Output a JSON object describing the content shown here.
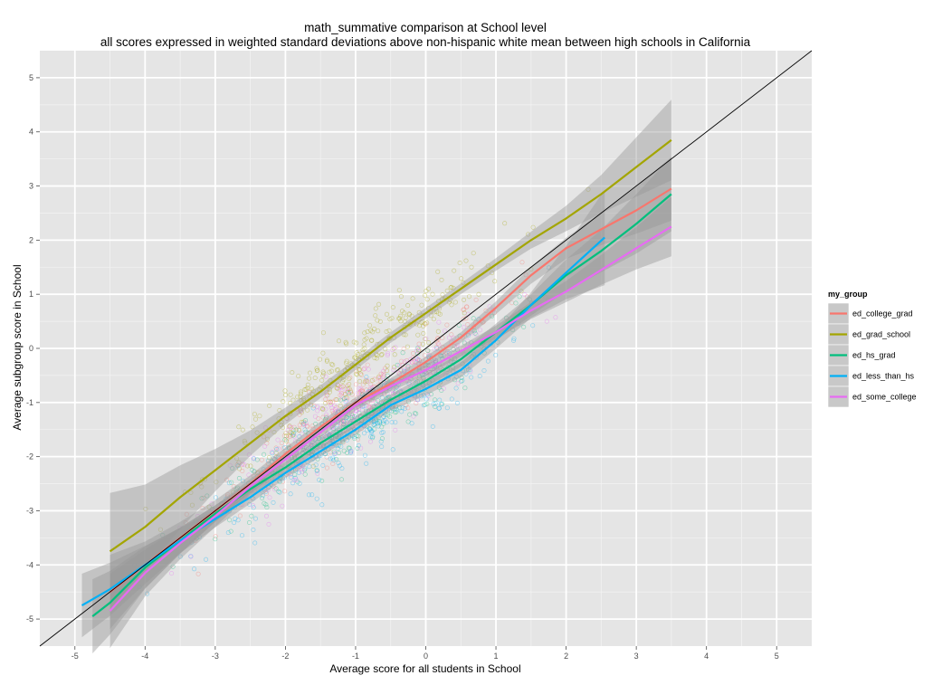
{
  "chart_data": {
    "type": "scatter",
    "title": "math_summative comparison at School level",
    "subtitle": "all scores expressed in weighted standard deviations above non-hispanic white mean between high schools in California",
    "xlabel": "Average score for all students in School",
    "ylabel": "Average subgroup score in School",
    "xlim": [
      -5.5,
      5.5
    ],
    "ylim": [
      -5.5,
      5.5
    ],
    "x_ticks": [
      -5,
      -4,
      -3,
      -2,
      -1,
      0,
      1,
      2,
      3,
      4,
      5
    ],
    "y_ticks": [
      -5,
      -4,
      -3,
      -2,
      -1,
      0,
      1,
      2,
      3,
      4,
      5
    ],
    "x_tick_labels": [
      "-5",
      "-4",
      "-3",
      "-2",
      "-1",
      "0",
      "1",
      "2",
      "3",
      "4",
      "5"
    ],
    "y_tick_labels": [
      "-5",
      "-4",
      "-3",
      "-2",
      "-1",
      "0",
      "1",
      "2",
      "3",
      "4",
      "5"
    ],
    "grid": true,
    "reference_line": {
      "slope": 1,
      "intercept": 0
    },
    "legend": {
      "title": "my_group",
      "position": "right"
    },
    "series": [
      {
        "name": "ed_college_grad",
        "color": "#F8766D",
        "smooth": {
          "x": [
            -4.5,
            -4,
            -3.5,
            -3,
            -2.5,
            -2,
            -1.5,
            -1,
            -0.5,
            0,
            0.5,
            1,
            1.5,
            2,
            2.5,
            3,
            3.5
          ],
          "y": [
            -4.5,
            -4.0,
            -3.5,
            -3.0,
            -2.5,
            -1.95,
            -1.45,
            -1.0,
            -0.65,
            -0.25,
            0.2,
            0.75,
            1.35,
            1.85,
            2.2,
            2.55,
            2.95
          ],
          "se": [
            0.35,
            0.22,
            0.15,
            0.1,
            0.08,
            0.06,
            0.05,
            0.05,
            0.05,
            0.05,
            0.05,
            0.06,
            0.08,
            0.1,
            0.15,
            0.22,
            0.3
          ]
        }
      },
      {
        "name": "ed_grad_school",
        "color": "#A3A500",
        "smooth": {
          "x": [
            -4.5,
            -4,
            -3.5,
            -3,
            -2.5,
            -2,
            -1.5,
            -1,
            -0.5,
            0,
            0.5,
            1,
            1.5,
            2,
            2.5,
            3,
            3.5
          ],
          "y": [
            -3.75,
            -3.3,
            -2.75,
            -2.25,
            -1.75,
            -1.25,
            -0.8,
            -0.3,
            0.2,
            0.65,
            1.1,
            1.55,
            2.0,
            2.4,
            2.85,
            3.35,
            3.85
          ],
          "se": [
            0.55,
            0.4,
            0.3,
            0.2,
            0.12,
            0.08,
            0.06,
            0.05,
            0.05,
            0.05,
            0.05,
            0.06,
            0.08,
            0.12,
            0.18,
            0.28,
            0.38
          ]
        }
      },
      {
        "name": "ed_hs_grad",
        "color": "#00BF7D",
        "smooth": {
          "x": [
            -4.75,
            -4.5,
            -4,
            -3.5,
            -3,
            -2.5,
            -2,
            -1.5,
            -1,
            -0.5,
            0,
            0.5,
            1,
            1.5,
            2,
            2.5,
            3,
            3.5
          ],
          "y": [
            -4.95,
            -4.7,
            -4.05,
            -3.55,
            -3.05,
            -2.6,
            -2.2,
            -1.75,
            -1.35,
            -0.95,
            -0.6,
            -0.2,
            0.3,
            0.8,
            1.35,
            1.8,
            2.3,
            2.85
          ],
          "se": [
            0.35,
            0.3,
            0.2,
            0.12,
            0.08,
            0.06,
            0.05,
            0.05,
            0.05,
            0.05,
            0.06,
            0.07,
            0.08,
            0.1,
            0.15,
            0.2,
            0.28,
            0.35
          ]
        }
      },
      {
        "name": "ed_less_than_hs",
        "color": "#00B0F6",
        "smooth": {
          "x": [
            -4.9,
            -4.5,
            -4,
            -3.5,
            -3,
            -2.5,
            -2,
            -1.5,
            -1,
            -0.5,
            0,
            0.5,
            1,
            1.5,
            2,
            2.55
          ],
          "y": [
            -4.75,
            -4.45,
            -4.0,
            -3.55,
            -3.15,
            -2.75,
            -2.3,
            -1.9,
            -1.5,
            -1.05,
            -0.75,
            -0.4,
            0.15,
            0.8,
            1.4,
            2.05
          ],
          "se": [
            0.3,
            0.25,
            0.18,
            0.12,
            0.08,
            0.06,
            0.05,
            0.05,
            0.05,
            0.05,
            0.06,
            0.07,
            0.08,
            0.12,
            0.25,
            0.45
          ]
        }
      },
      {
        "name": "ed_some_college",
        "color": "#E76BF3",
        "smooth": {
          "x": [
            -4.5,
            -4,
            -3.5,
            -3,
            -2.5,
            -2,
            -1.5,
            -1,
            -0.5,
            0,
            0.5,
            1,
            1.5,
            2,
            2.5,
            3,
            3.5
          ],
          "y": [
            -4.85,
            -4.15,
            -3.6,
            -3.1,
            -2.55,
            -2.05,
            -1.55,
            -1.05,
            -0.7,
            -0.4,
            -0.05,
            0.3,
            0.7,
            1.05,
            1.45,
            1.85,
            2.25
          ],
          "se": [
            0.35,
            0.22,
            0.15,
            0.1,
            0.07,
            0.06,
            0.05,
            0.05,
            0.05,
            0.05,
            0.05,
            0.06,
            0.08,
            0.1,
            0.14,
            0.2,
            0.28
          ]
        }
      }
    ]
  },
  "colors": {
    "panel_background": "#E5E5E5",
    "grid_major": "#FFFFFF",
    "grid_minor": "#F2F2F2",
    "ribbon": "#999999"
  }
}
